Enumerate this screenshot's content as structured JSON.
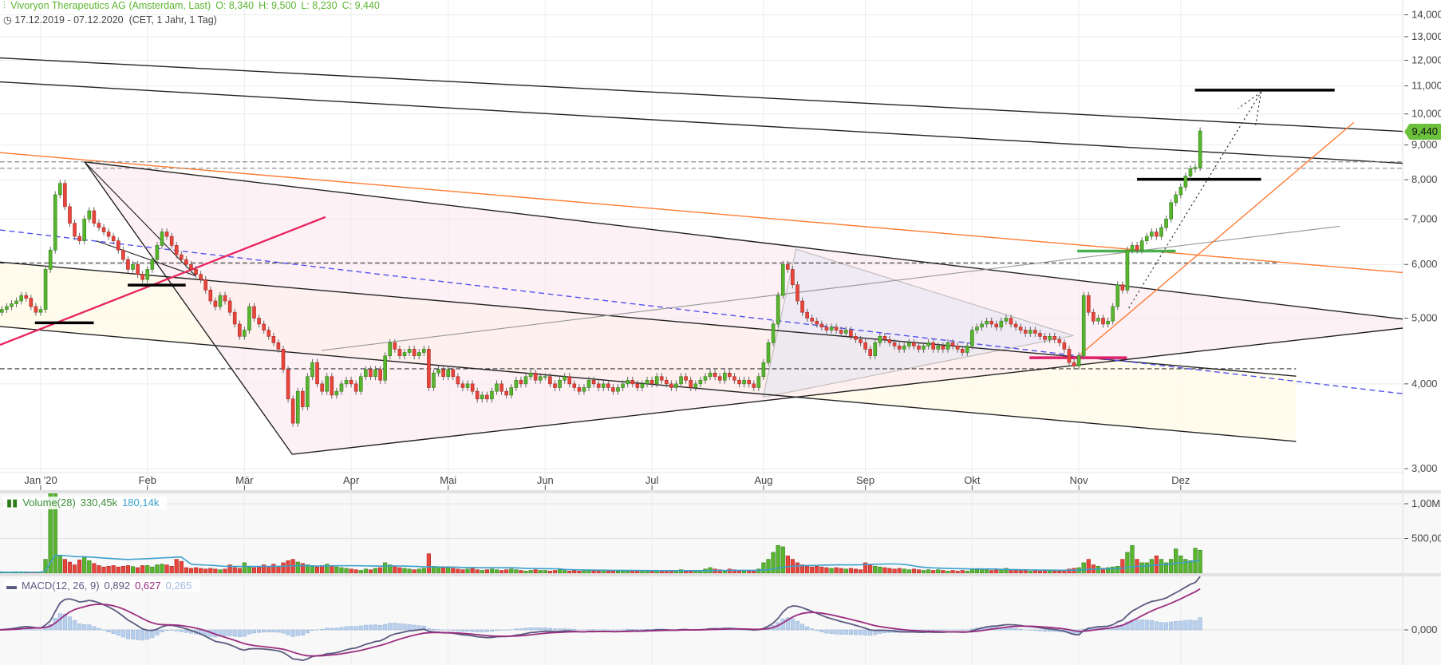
{
  "header": {
    "title": "Vivoryon Therapeutics AG (Amsterdam, Last)",
    "open": "O: 8,340",
    "high": "H: 9,500",
    "low": "L: 8,230",
    "close": "C: 9,440",
    "range": "17.12.2019 - 07.12.2020",
    "meta": "(CET, 1 Jahr, 1 Tag)"
  },
  "last_price": "9,440",
  "volume_legend": {
    "label": "Volume(28)",
    "value": "330,45k",
    "ma": "180,14k"
  },
  "macd_legend": {
    "label": "MACD(12, 26, 9)",
    "macd": "0,892",
    "signal": "0,627",
    "histogram": "0,265"
  },
  "colors": {
    "up": "#5ab52e",
    "down": "#e8453c",
    "volume_ma": "#3aa0cc",
    "macd": "#5a5a80",
    "signal": "#9b2d7f",
    "histogram": "#b9cfec",
    "header": "#5cb531",
    "last_tag": "#6cc13c"
  },
  "chart_data": {
    "type": "candlestick",
    "scale": "log",
    "ylim": [
      3,
      14
    ],
    "price_ticks": [
      {
        "value": 14,
        "label": "14,000"
      },
      {
        "value": 13,
        "label": "13,000"
      },
      {
        "value": 12,
        "label": "12,000"
      },
      {
        "value": 11,
        "label": "11,000"
      },
      {
        "value": 10,
        "label": "10,000"
      },
      {
        "value": 9,
        "label": "9,000"
      },
      {
        "value": 8,
        "label": "8,000"
      },
      {
        "value": 7,
        "label": "7,000"
      },
      {
        "value": 6,
        "label": "6,000"
      },
      {
        "value": 5,
        "label": "5,000"
      },
      {
        "value": 4,
        "label": "4,000"
      },
      {
        "value": 3,
        "label": "3,000"
      }
    ],
    "volume_ticks": [
      {
        "value": 1000,
        "label": "1,00M"
      },
      {
        "value": 500,
        "label": "500,00K"
      }
    ],
    "macd_ticks": [
      {
        "value": 0,
        "label": "0,000"
      }
    ],
    "volume_unit": "k",
    "months": [
      {
        "month": "2019-12",
        "label": "",
        "close": [
          5.1,
          5.15,
          5.2,
          5.25,
          5.3,
          5.4,
          5.35,
          5.2,
          5.1
        ],
        "volume": [
          15,
          15,
          10,
          15,
          20,
          15,
          15,
          10,
          15
        ]
      },
      {
        "month": "2020-01",
        "label": "Jan '20",
        "close": [
          5.15,
          5.9,
          6.3,
          7.6,
          7.9,
          7.3,
          6.9,
          6.6,
          6.5,
          7.0,
          7.2,
          6.9,
          6.8,
          6.7,
          6.6,
          6.5,
          6.3,
          6.1,
          5.9,
          6.0,
          5.8,
          5.7
        ],
        "volume": [
          15,
          200,
          1500,
          1500,
          250,
          200,
          160,
          120,
          190,
          230,
          180,
          140,
          110,
          90,
          100,
          110,
          90,
          100,
          110,
          95,
          80,
          110
        ]
      },
      {
        "month": "2020-02",
        "label": "Feb",
        "close": [
          5.9,
          6.1,
          6.4,
          6.7,
          6.6,
          6.4,
          6.2,
          6.1,
          6.0,
          5.9,
          5.8,
          5.7,
          5.5,
          5.3,
          5.2,
          5.4,
          5.3,
          5.1,
          4.9,
          4.7
        ],
        "volume": [
          110,
          90,
          120,
          130,
          120,
          100,
          200,
          170,
          80,
          70,
          80,
          70,
          60,
          70,
          60,
          50,
          60,
          120,
          80,
          70
        ]
      },
      {
        "month": "2020-03",
        "label": "Mär",
        "close": [
          4.8,
          5.2,
          5.0,
          4.9,
          4.8,
          4.7,
          4.6,
          4.5,
          4.2,
          3.8,
          3.5,
          3.9,
          3.7,
          4.1,
          4.3,
          4.0,
          3.9,
          4.1,
          3.85,
          3.9,
          4.0,
          4.05
        ],
        "volume": [
          150,
          90,
          80,
          100,
          120,
          90,
          130,
          100,
          150,
          180,
          200,
          160,
          140,
          120,
          100,
          90,
          110,
          130,
          100,
          90,
          80,
          70
        ]
      },
      {
        "month": "2020-04",
        "label": "Apr",
        "close": [
          4.0,
          3.9,
          4.1,
          4.2,
          4.1,
          4.2,
          4.05,
          4.4,
          4.6,
          4.5,
          4.4,
          4.45,
          4.5,
          4.4,
          4.45,
          4.5,
          3.95,
          4.15,
          4.2,
          4.1
        ],
        "volume": [
          60,
          50,
          40,
          60,
          50,
          70,
          80,
          150,
          120,
          100,
          80,
          70,
          60,
          50,
          60,
          70,
          280,
          100,
          90,
          80
        ]
      },
      {
        "month": "2020-05",
        "label": "Mai",
        "close": [
          4.2,
          4.1,
          4.0,
          3.95,
          4.0,
          3.9,
          3.8,
          3.85,
          3.8,
          3.9,
          4.0,
          3.9,
          3.85,
          3.95,
          4.05,
          4.0,
          4.1,
          4.15,
          4.05,
          4.1
        ],
        "volume": [
          80,
          70,
          60,
          50,
          60,
          70,
          50,
          40,
          50,
          60,
          50,
          40,
          50,
          60,
          50,
          40,
          30,
          40,
          50,
          40
        ]
      },
      {
        "month": "2020-06",
        "label": "Jun",
        "close": [
          4.1,
          4.0,
          3.95,
          4.05,
          4.1,
          4.0,
          3.95,
          3.9,
          3.95,
          4.05,
          4.0,
          3.95,
          4.0,
          3.95,
          3.9,
          3.95,
          4.0,
          4.05,
          4.0,
          3.95,
          4.0,
          4.05
        ],
        "volume": [
          40,
          30,
          40,
          50,
          40,
          30,
          40,
          30,
          40,
          50,
          40,
          30,
          40,
          30,
          40,
          30,
          40,
          30,
          40,
          30,
          40,
          30
        ]
      },
      {
        "month": "2020-07",
        "label": "Jul",
        "close": [
          4.0,
          4.1,
          4.05,
          4.0,
          3.95,
          4.0,
          4.1,
          4.05,
          3.95,
          4.0,
          4.05,
          4.1,
          4.15,
          4.1,
          4.05,
          4.15,
          4.1,
          4.05,
          4.0,
          4.05,
          4.0,
          3.95,
          4.1
        ],
        "volume": [
          30,
          40,
          30,
          40,
          30,
          40,
          50,
          40,
          30,
          40,
          30,
          60,
          80,
          60,
          50,
          40,
          60,
          50,
          40,
          30,
          40,
          30,
          60
        ]
      },
      {
        "month": "2020-08",
        "label": "Aug",
        "close": [
          4.3,
          4.6,
          4.9,
          5.4,
          6.0,
          5.9,
          5.6,
          5.3,
          5.1,
          5.0,
          4.95,
          4.9,
          4.85,
          4.8,
          4.85,
          4.8,
          4.75,
          4.8,
          4.7,
          4.65,
          4.6
        ],
        "volume": [
          150,
          200,
          300,
          400,
          380,
          250,
          200,
          150,
          120,
          100,
          90,
          100,
          90,
          80,
          70,
          80,
          70,
          60,
          70,
          60,
          50
        ]
      },
      {
        "month": "2020-09",
        "label": "Sep",
        "close": [
          4.5,
          4.4,
          4.6,
          4.7,
          4.65,
          4.6,
          4.55,
          4.5,
          4.55,
          4.6,
          4.55,
          4.5,
          4.55,
          4.6,
          4.5,
          4.55,
          4.5,
          4.6,
          4.55,
          4.5,
          4.45,
          4.55
        ],
        "volume": [
          150,
          120,
          100,
          90,
          80,
          70,
          60,
          70,
          60,
          50,
          60,
          50,
          40,
          50,
          40,
          50,
          40,
          30,
          40,
          30,
          40,
          30
        ]
      },
      {
        "month": "2020-10",
        "label": "Okt",
        "close": [
          4.8,
          4.85,
          4.9,
          4.95,
          4.9,
          4.85,
          4.95,
          5.0,
          4.9,
          4.85,
          4.8,
          4.75,
          4.8,
          4.75,
          4.7,
          4.65,
          4.7,
          4.65,
          4.6,
          4.5,
          4.3,
          4.25
        ],
        "volume": [
          60,
          50,
          60,
          50,
          40,
          50,
          60,
          70,
          50,
          40,
          50,
          40,
          30,
          40,
          30,
          40,
          30,
          40,
          30,
          40,
          60,
          70
        ]
      },
      {
        "month": "2020-11",
        "label": "Nov",
        "close": [
          4.4,
          5.4,
          5.1,
          4.95,
          5.0,
          4.9,
          4.95,
          5.2,
          5.6,
          5.5,
          6.3,
          6.4,
          6.3,
          6.5,
          6.6,
          6.7,
          6.6,
          6.8,
          7.0,
          7.4,
          7.6
        ],
        "volume": [
          80,
          150,
          200,
          120,
          100,
          70,
          80,
          90,
          100,
          200,
          300,
          400,
          200,
          150,
          150,
          200,
          250,
          200,
          150,
          200,
          350
        ]
      },
      {
        "month": "2020-12",
        "label": "Dez",
        "close": [
          7.8,
          8.1,
          8.3,
          8.34,
          9.44
        ],
        "volume": [
          250,
          200,
          180,
          360,
          330.45
        ]
      }
    ]
  }
}
